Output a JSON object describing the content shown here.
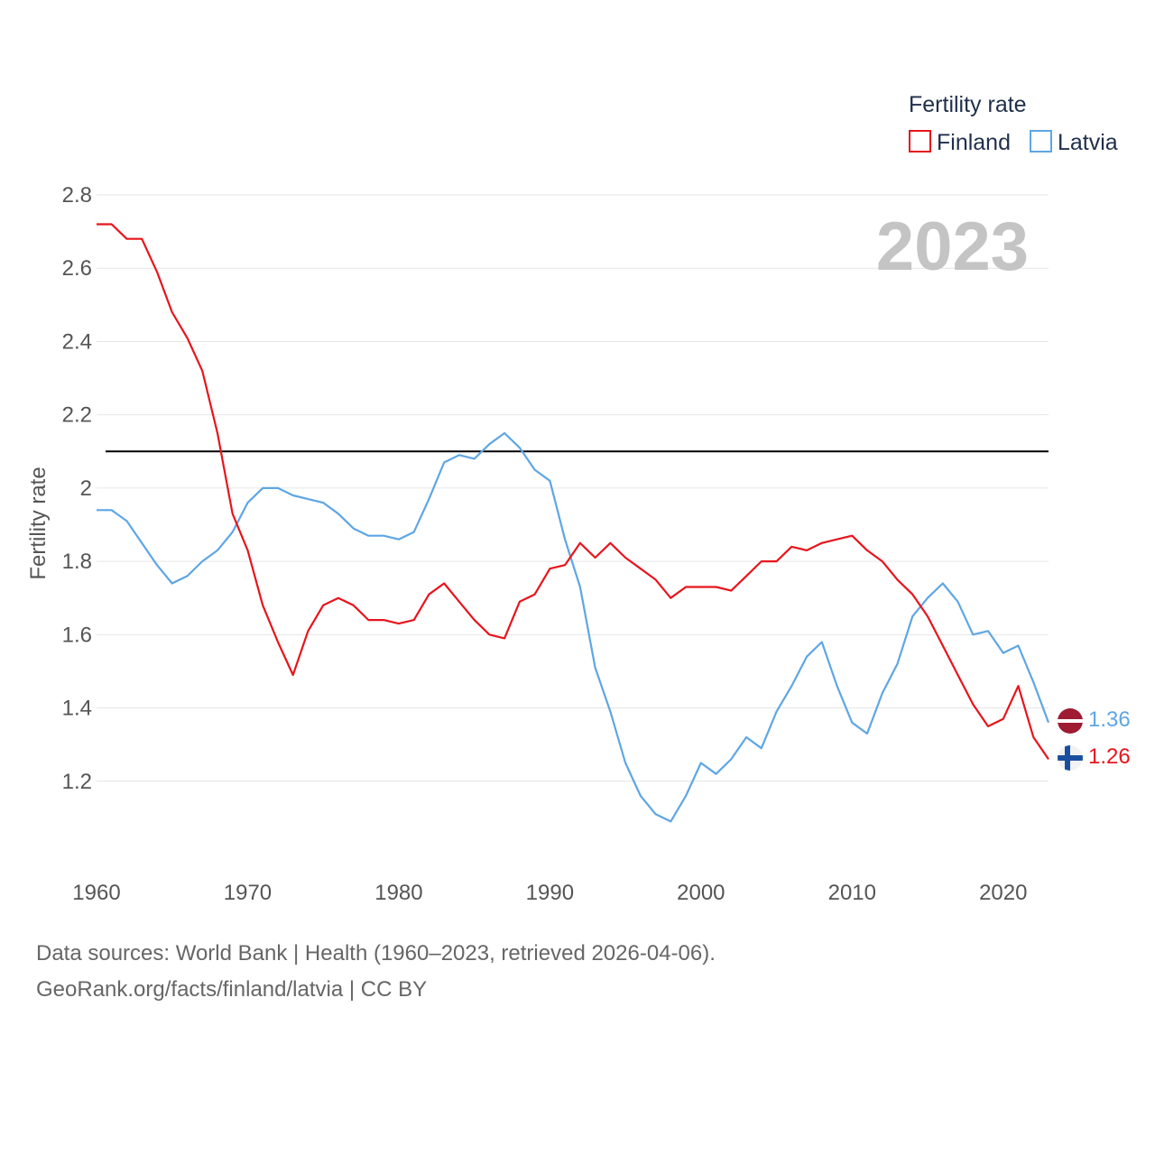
{
  "colors": {
    "finland": "#e8141c",
    "latvia": "#5ea6e4",
    "reference": "#000000",
    "grid": "#e6e6e6"
  },
  "legend": {
    "title": "Fertility rate",
    "items": [
      "Finland",
      "Latvia"
    ]
  },
  "year_watermark": "2023",
  "footer": {
    "source": "Data sources: World Bank | Health (1960–2023, retrieved 2026-04-06).",
    "credit": "GeoRank.org/facts/finland/latvia | CC BY"
  },
  "chart_data": {
    "type": "line",
    "title": "",
    "xlabel": "",
    "ylabel": "Fertility rate",
    "xlim": [
      1960,
      2023
    ],
    "ylim": [
      1.0,
      2.8
    ],
    "x_ticks": [
      1960,
      1970,
      1980,
      1990,
      2000,
      2010,
      2020
    ],
    "y_ticks": [
      1.2,
      1.4,
      1.6,
      1.8,
      2.0,
      2.2,
      2.4,
      2.6,
      2.8
    ],
    "y_tick_labels": [
      "1.2",
      "1.4",
      "1.6",
      "1.8",
      "2",
      "2.2",
      "2.4",
      "2.6",
      "2.8"
    ],
    "reference_line": 2.1,
    "x": [
      1960,
      1961,
      1962,
      1963,
      1964,
      1965,
      1966,
      1967,
      1968,
      1969,
      1970,
      1971,
      1972,
      1973,
      1974,
      1975,
      1976,
      1977,
      1978,
      1979,
      1980,
      1981,
      1982,
      1983,
      1984,
      1985,
      1986,
      1987,
      1988,
      1989,
      1990,
      1991,
      1992,
      1993,
      1994,
      1995,
      1996,
      1997,
      1998,
      1999,
      2000,
      2001,
      2002,
      2003,
      2004,
      2005,
      2006,
      2007,
      2008,
      2009,
      2010,
      2011,
      2012,
      2013,
      2014,
      2015,
      2016,
      2017,
      2018,
      2019,
      2020,
      2021,
      2022,
      2023
    ],
    "series": [
      {
        "name": "Finland",
        "end_label": "1.26",
        "values": [
          2.72,
          2.72,
          2.68,
          2.68,
          2.59,
          2.48,
          2.41,
          2.32,
          2.15,
          1.93,
          1.83,
          1.68,
          1.58,
          1.49,
          1.61,
          1.68,
          1.7,
          1.68,
          1.64,
          1.64,
          1.63,
          1.64,
          1.71,
          1.74,
          1.69,
          1.64,
          1.6,
          1.59,
          1.69,
          1.71,
          1.78,
          1.79,
          1.85,
          1.81,
          1.85,
          1.81,
          1.78,
          1.75,
          1.7,
          1.73,
          1.73,
          1.73,
          1.72,
          1.76,
          1.8,
          1.8,
          1.84,
          1.83,
          1.85,
          1.86,
          1.87,
          1.83,
          1.8,
          1.75,
          1.71,
          1.65,
          1.57,
          1.49,
          1.41,
          1.35,
          1.37,
          1.46,
          1.32,
          1.26
        ]
      },
      {
        "name": "Latvia",
        "end_label": "1.36",
        "values": [
          1.94,
          1.94,
          1.91,
          1.85,
          1.79,
          1.74,
          1.76,
          1.8,
          1.83,
          1.88,
          1.96,
          2.0,
          2.0,
          1.98,
          1.97,
          1.96,
          1.93,
          1.89,
          1.87,
          1.87,
          1.86,
          1.88,
          1.97,
          2.07,
          2.09,
          2.08,
          2.12,
          2.15,
          2.11,
          2.05,
          2.02,
          1.86,
          1.73,
          1.51,
          1.39,
          1.25,
          1.16,
          1.11,
          1.09,
          1.16,
          1.25,
          1.22,
          1.26,
          1.32,
          1.29,
          1.39,
          1.46,
          1.54,
          1.58,
          1.46,
          1.36,
          1.33,
          1.44,
          1.52,
          1.65,
          1.7,
          1.74,
          1.69,
          1.6,
          1.61,
          1.55,
          1.57,
          1.47,
          1.36
        ]
      }
    ]
  }
}
